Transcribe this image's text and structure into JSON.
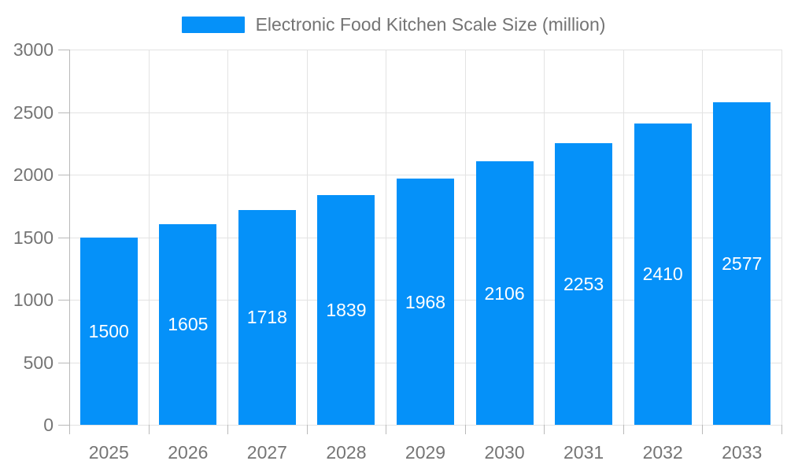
{
  "legend": {
    "label": "Electronic Food Kitchen Scale Size (million)"
  },
  "chart_data": {
    "type": "bar",
    "title": "Electronic Food Kitchen Scale Size (million)",
    "categories": [
      "2025",
      "2026",
      "2027",
      "2028",
      "2029",
      "2030",
      "2031",
      "2032",
      "2033"
    ],
    "values": [
      1500,
      1605,
      1718,
      1839,
      1968,
      2106,
      2253,
      2410,
      2577
    ],
    "xlabel": "",
    "ylabel": "",
    "ylim": [
      0,
      3000
    ],
    "ytick_step": 500,
    "ytick_labels": [
      "0",
      "500",
      "1000",
      "1500",
      "2000",
      "2500",
      "3000"
    ],
    "grid": true,
    "legend_position": "top-center",
    "value_labels": "centered-inside-bars",
    "colors": {
      "bar": "#0591f9",
      "value_label": "#ffffff",
      "axis_text": "#757575",
      "legend_text": "#747474",
      "gridline": "#e3e3e3",
      "axis_line": "#b9b9b9"
    }
  }
}
